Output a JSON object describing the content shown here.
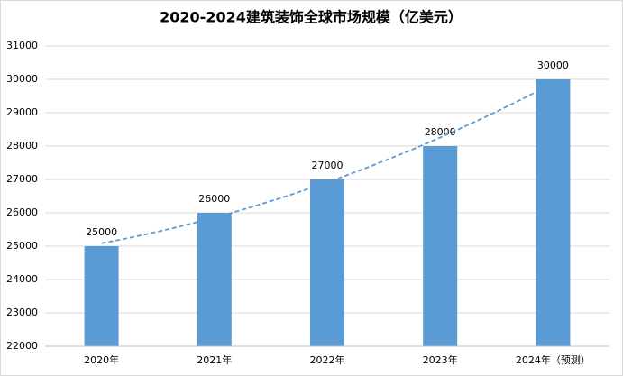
{
  "chart_data": {
    "type": "bar",
    "title": "2020-2024建筑装饰全球市场规模（亿美元）",
    "categories": [
      "2020年",
      "2021年",
      "2022年",
      "2023年",
      "2024年（预测）"
    ],
    "values": [
      25000,
      26000,
      27000,
      28000,
      30000
    ],
    "color": "#5b9bd5",
    "trendline_color": "#5b9bd5",
    "ylim": [
      22000,
      31000
    ],
    "yticks": [
      22000,
      23000,
      24000,
      25000,
      26000,
      27000,
      28000,
      29000,
      30000,
      31000
    ],
    "grid": true,
    "trendline": "polynomial"
  }
}
